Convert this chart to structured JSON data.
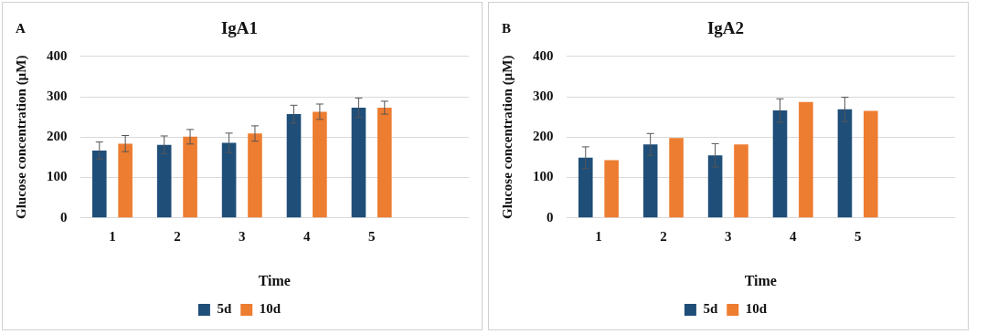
{
  "chart_data": [
    {
      "type": "bar",
      "title": "IgA1",
      "xlabel": "Time",
      "ylabel": "Glucose concentration (µM)",
      "annotations": [
        "A"
      ],
      "categories": [
        "1",
        "2",
        "3",
        "4",
        "5",
        null
      ],
      "series": [
        {
          "name": "5d",
          "color": "#1f4e79",
          "values": [
            167,
            181,
            186,
            257,
            273,
            null
          ],
          "errors": [
            21,
            22,
            24,
            22,
            24,
            null
          ]
        },
        {
          "name": "10d",
          "color": "#ed7d31",
          "values": [
            184,
            201,
            209,
            263,
            273,
            null
          ],
          "errors": [
            20,
            18,
            19,
            19,
            16,
            null
          ]
        }
      ],
      "ylim": [
        0,
        400
      ],
      "yticks": [
        0,
        100,
        200,
        300,
        400
      ],
      "grid": "y",
      "legend": "bottom"
    },
    {
      "type": "bar",
      "title": "IgA2",
      "xlabel": "Time",
      "ylabel": "Glucose concentration (µM)",
      "annotations": [
        "B"
      ],
      "categories": [
        "1",
        "2",
        "3",
        "4",
        "5",
        null
      ],
      "series": [
        {
          "name": "5d",
          "color": "#1f4e79",
          "values": [
            149,
            182,
            155,
            266,
            269,
            null
          ],
          "errors": [
            27,
            27,
            29,
            29,
            30,
            null
          ]
        },
        {
          "name": "10d",
          "color": "#ed7d31",
          "values": [
            143,
            198,
            182,
            287,
            265,
            null
          ]
        }
      ],
      "ylim": [
        0,
        400
      ],
      "yticks": [
        0,
        100,
        200,
        300,
        400
      ],
      "grid": "y",
      "legend": "bottom"
    }
  ]
}
